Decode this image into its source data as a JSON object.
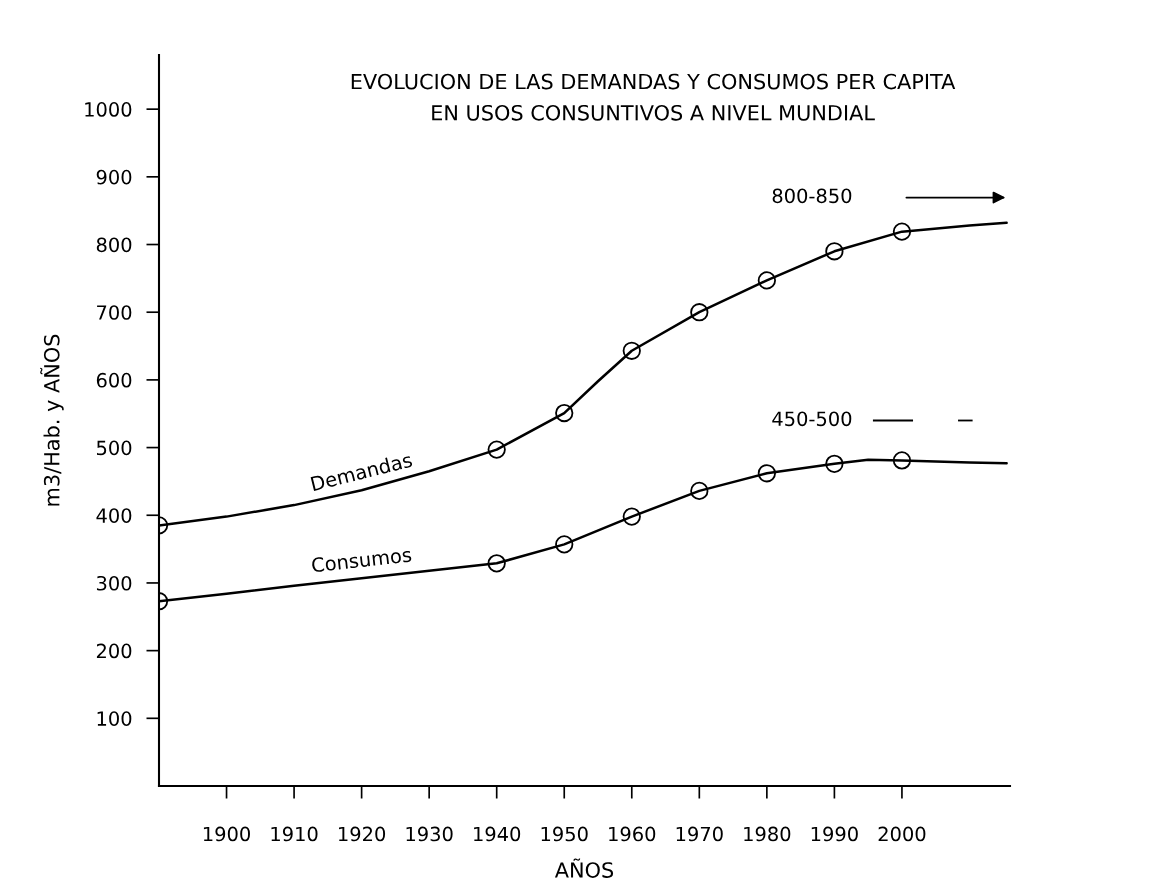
{
  "chart_data": {
    "type": "line",
    "title": "EVOLUCION DE LAS DEMANDAS Y CONSUMOS PER CAPITA\nEN USOS CONSUNTIVOS A NIVEL MUNDIAL",
    "xlabel": "AÑOS",
    "ylabel": "m3/Hab. y AÑOS",
    "xlim": [
      1890,
      2016
    ],
    "ylim": [
      0,
      1080
    ],
    "xticks": [
      1900,
      1910,
      1920,
      1930,
      1940,
      1950,
      1960,
      1970,
      1980,
      1990,
      2000
    ],
    "yticks": [
      100,
      200,
      300,
      400,
      500,
      600,
      700,
      800,
      900,
      1000
    ],
    "grid": false,
    "series": [
      {
        "name": "Demandas",
        "color": "#000000",
        "marker": "none",
        "x": [
          1890,
          1900,
          1910,
          1920,
          1930,
          1940,
          1950,
          1955,
          1960,
          1970,
          1980,
          1990,
          2000,
          2010,
          2015.5
        ],
        "values": [
          385,
          398,
          415,
          437,
          465,
          497,
          551,
          598,
          643,
          700,
          747,
          790,
          819,
          828,
          832
        ]
      },
      {
        "name": "Consumos",
        "color": "#000000",
        "marker": "none",
        "x": [
          1890,
          1900,
          1910,
          1920,
          1930,
          1940,
          1950,
          1960,
          1970,
          1980,
          1990,
          1995,
          2000,
          2010,
          2015.5
        ],
        "values": [
          273,
          284,
          296,
          307,
          318,
          329,
          357,
          398,
          436,
          462,
          476,
          482,
          481,
          478,
          477
        ]
      },
      {
        "type": "scatter",
        "color": "#000000",
        "marker": "circle",
        "x": [
          1890,
          1940,
          1950,
          1960,
          1970,
          1980,
          1990,
          2000
        ],
        "values": [
          385,
          497,
          551,
          643,
          700,
          747,
          790,
          819
        ]
      },
      {
        "type": "scatter",
        "color": "#000000",
        "marker": "circle",
        "x": [
          1890,
          1940,
          1950,
          1960,
          1970,
          1980,
          1990,
          2000
        ],
        "values": [
          273,
          329,
          357,
          398,
          436,
          462,
          476,
          481
        ]
      }
    ],
    "annotations": [
      "800-850",
      "450-500"
    ]
  }
}
